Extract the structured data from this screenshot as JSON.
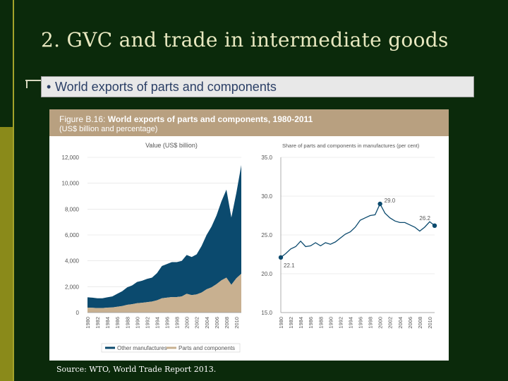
{
  "slide": {
    "title": "2. GVC and trade in intermediate goods",
    "bullet": "World exports of parts and components",
    "source": "Source: WTO, World Trade Report 2013."
  },
  "figure": {
    "title_prefix": "Figure B.16:",
    "title_main": "World exports of parts and components, 1980-2011",
    "subtitle": "(US$ billion and percentage)"
  },
  "chart_data": [
    {
      "type": "area",
      "title": "Value (US$ billion)",
      "stacked": true,
      "x": [
        1980,
        1981,
        1982,
        1983,
        1984,
        1985,
        1986,
        1987,
        1988,
        1989,
        1990,
        1991,
        1992,
        1993,
        1994,
        1995,
        1996,
        1997,
        1998,
        1999,
        2000,
        2001,
        2002,
        2003,
        2004,
        2005,
        2006,
        2007,
        2008,
        2009,
        2010,
        2011
      ],
      "x_tick_labels": [
        "1980",
        "1982",
        "1984",
        "1986",
        "1988",
        "1990",
        "1992",
        "1994",
        "1996",
        "1998",
        "2000",
        "2002",
        "2004",
        "2006",
        "2008",
        "2010"
      ],
      "ylim": [
        0,
        12000
      ],
      "y_ticks": [
        "0",
        "2,000",
        "4,000",
        "6,000",
        "8,000",
        "10,000",
        "12,000"
      ],
      "y_tick_values": [
        0,
        2000,
        4000,
        6000,
        8000,
        10000,
        12000
      ],
      "series": [
        {
          "name": "Parts and components",
          "color": "#c8b090",
          "values": [
            380,
            370,
            350,
            350,
            380,
            400,
            450,
            500,
            600,
            650,
            720,
            760,
            800,
            850,
            950,
            1100,
            1150,
            1200,
            1200,
            1250,
            1450,
            1350,
            1400,
            1550,
            1800,
            1950,
            2200,
            2500,
            2700,
            2150,
            2650,
            3000
          ]
        },
        {
          "name": "Other manufactures",
          "color": "#0b4a6e",
          "values": [
            800,
            780,
            760,
            750,
            800,
            850,
            1000,
            1150,
            1350,
            1450,
            1650,
            1700,
            1800,
            1850,
            2100,
            2500,
            2600,
            2700,
            2700,
            2750,
            3000,
            2950,
            3100,
            3600,
            4200,
            4700,
            5300,
            6100,
            6800,
            5200,
            6600,
            8400
          ]
        }
      ],
      "legend": [
        "Other manufactures",
        "Parts and components"
      ]
    },
    {
      "type": "line",
      "title": "Share of parts and components in manufactures (per cent)",
      "x": [
        1980,
        1981,
        1982,
        1983,
        1984,
        1985,
        1986,
        1987,
        1988,
        1989,
        1990,
        1991,
        1992,
        1993,
        1994,
        1995,
        1996,
        1997,
        1998,
        1999,
        2000,
        2001,
        2002,
        2003,
        2004,
        2005,
        2006,
        2007,
        2008,
        2009,
        2010,
        2011
      ],
      "values": [
        22.1,
        22.6,
        23.2,
        23.5,
        24.2,
        23.5,
        23.6,
        24.0,
        23.6,
        24.0,
        23.8,
        24.1,
        24.6,
        25.1,
        25.4,
        26.0,
        26.9,
        27.2,
        27.5,
        27.6,
        29.0,
        27.8,
        27.2,
        26.8,
        26.6,
        26.6,
        26.3,
        26.0,
        25.5,
        26.0,
        26.7,
        26.2
      ],
      "ylim": [
        15.0,
        35.0
      ],
      "y_ticks": [
        "15.0",
        "20.0",
        "25.0",
        "30.0",
        "35.0"
      ],
      "y_tick_values": [
        15,
        20,
        25,
        30,
        35
      ],
      "x_tick_labels": [
        "1980",
        "1982",
        "1984",
        "1986",
        "1988",
        "1990",
        "1992",
        "1994",
        "1996",
        "1998",
        "2000",
        "2002",
        "2004",
        "2006",
        "2008",
        "2010"
      ],
      "annotations": [
        {
          "x": 1980,
          "y": 22.1,
          "label": "22.1"
        },
        {
          "x": 2000,
          "y": 29.0,
          "label": "29.0"
        },
        {
          "x": 2011,
          "y": 26.2,
          "label": "26.2"
        }
      ],
      "color": "#0b4a6e"
    }
  ]
}
